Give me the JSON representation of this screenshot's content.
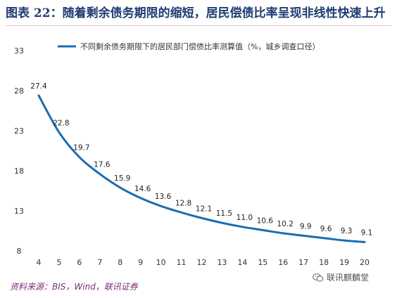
{
  "title": "图表 22：随着剩余债务期限的缩短，居民偿债比率呈现非线性快速上升",
  "source": "资料来源：BIS，Wind，联讯证券",
  "watermark": "联讯麒麟堂",
  "watermark_icon": "wechat-icon",
  "colors": {
    "series": "#1a6db3",
    "title": "#1f3c73",
    "source": "#7b2c7a"
  },
  "chart_data": {
    "type": "line",
    "x": [
      4,
      5,
      6,
      7,
      8,
      9,
      10,
      11,
      12,
      13,
      14,
      15,
      16,
      17,
      18,
      19,
      20
    ],
    "series": [
      {
        "name": "不同剩余债务期限下的居民部门偿债比率测算值（%，城乡调查口径）",
        "values": [
          27.4,
          22.8,
          19.7,
          17.6,
          15.9,
          14.6,
          13.6,
          12.8,
          12.1,
          11.5,
          11.0,
          10.6,
          10.2,
          9.9,
          9.6,
          9.3,
          9.1
        ]
      }
    ],
    "yticks": [
      8,
      13,
      18,
      23,
      28,
      33
    ],
    "ylim": [
      8,
      33
    ],
    "xlim": [
      4,
      20
    ],
    "grid": false,
    "legend": "top"
  }
}
